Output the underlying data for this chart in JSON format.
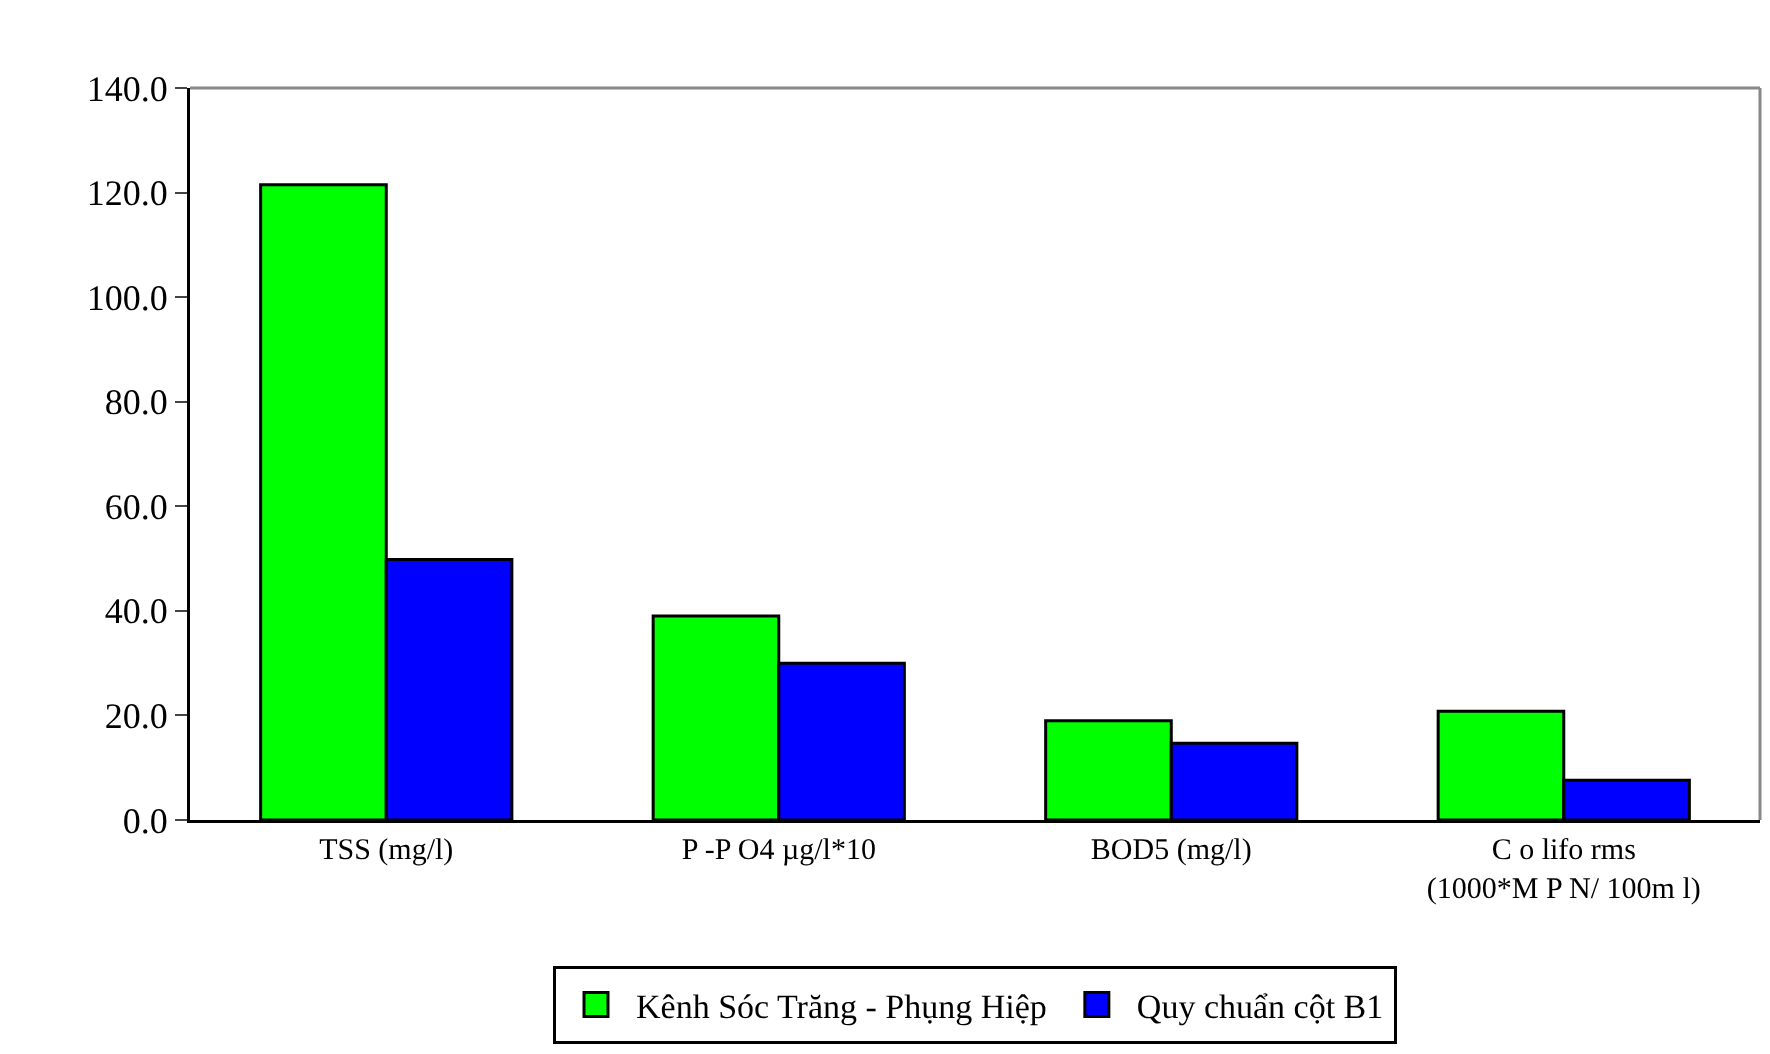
{
  "chart_data": {
    "type": "bar",
    "categories": [
      "TSS (mg/l)",
      "P -P O4 µg/l*10",
      "BOD5 (mg/l)",
      "C o lifo rms\n(1000*M P N/ 100m l)"
    ],
    "series": [
      {
        "name": "Kênh Sóc Trăng - Phụng Hiệp",
        "color": "#00ff00",
        "values": [
          121.5,
          39,
          19,
          20.8
        ]
      },
      {
        "name": "Quy chuẩn cột B1",
        "color": "#0000ff",
        "values": [
          49.8,
          30,
          14.7,
          7.6
        ]
      }
    ],
    "ylim": [
      0,
      140
    ],
    "yticks": [
      {
        "value": 0,
        "label": "0.0"
      },
      {
        "value": 20,
        "label": "20.0"
      },
      {
        "value": 40,
        "label": "40.0"
      },
      {
        "value": 60,
        "label": "60.0"
      },
      {
        "value": 80,
        "label": "80.0"
      },
      {
        "value": 100,
        "label": "100.0"
      },
      {
        "value": 120,
        "label": "120.0"
      },
      {
        "value": 140,
        "label": "140.0"
      }
    ],
    "grid": false,
    "legend": "bottom"
  }
}
